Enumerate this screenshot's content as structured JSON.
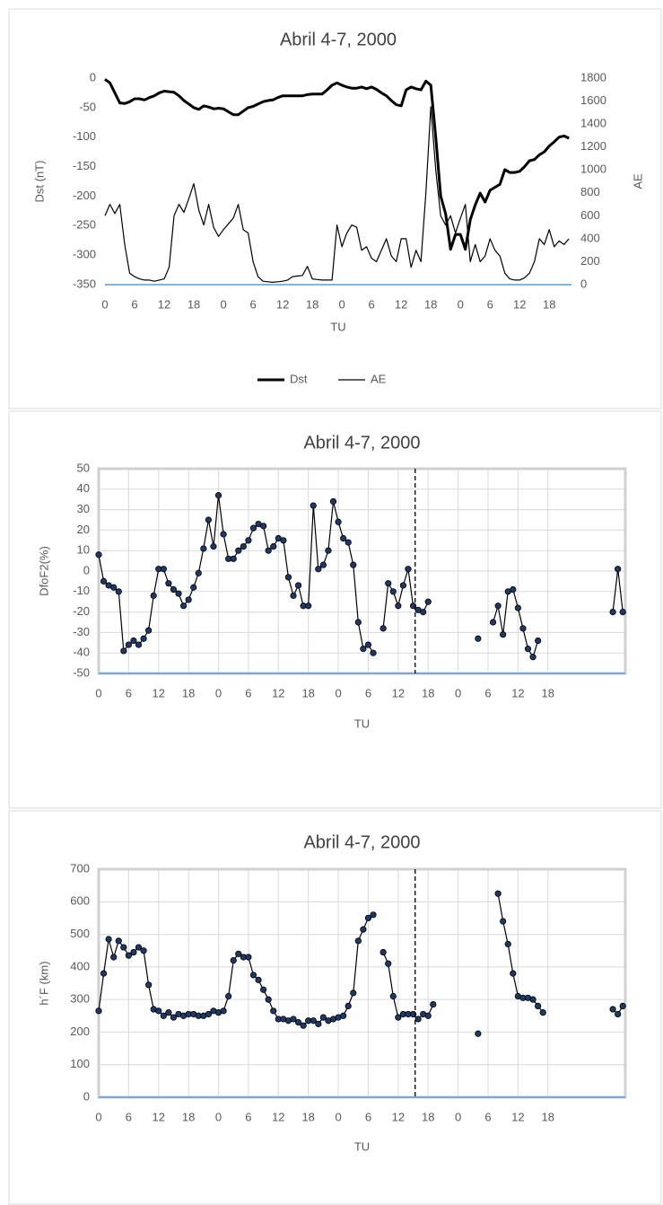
{
  "chart_data": [
    {
      "type": "line",
      "title": "Abril 4-7, 2000",
      "x_label": "TU",
      "y_label": "Dst (nT)",
      "y2_label": "AE",
      "legend": "bottom",
      "grid": false,
      "markers": false,
      "frame": false,
      "x": [
        0,
        1,
        2,
        3,
        4,
        5,
        6,
        7,
        8,
        9,
        10,
        11,
        12,
        13,
        14,
        15,
        16,
        17,
        18,
        19,
        20,
        21,
        22,
        23,
        24,
        25,
        26,
        27,
        28,
        29,
        30,
        31,
        32,
        33,
        34,
        35,
        36,
        37,
        38,
        39,
        40,
        41,
        42,
        43,
        44,
        45,
        46,
        47,
        48,
        49,
        50,
        51,
        52,
        53,
        54,
        55,
        56,
        57,
        58,
        59,
        60,
        61,
        62,
        63,
        64,
        65,
        66,
        67,
        68,
        69,
        70,
        71,
        72,
        73,
        74,
        75,
        76,
        77,
        78,
        79,
        80,
        81,
        82,
        83,
        84,
        85,
        86,
        87,
        88,
        89,
        90,
        91,
        92,
        93,
        94
      ],
      "series": [
        {
          "name": "Dst",
          "color": "#000000",
          "line_width": 3,
          "values": [
            -2,
            -8,
            -25,
            -42,
            -43,
            -40,
            -35,
            -35,
            -37,
            -33,
            -30,
            -25,
            -22,
            -23,
            -24,
            -30,
            -38,
            -44,
            -50,
            -53,
            -47,
            -49,
            -52,
            -51,
            -52,
            -57,
            -62,
            -62,
            -56,
            -50,
            -48,
            -44,
            -40,
            -38,
            -37,
            -33,
            -30,
            -30,
            -30,
            -30,
            -30,
            -28,
            -27,
            -27,
            -27,
            -20,
            -12,
            -8,
            -12,
            -15,
            -17,
            -17,
            -15,
            -18,
            -15,
            -19,
            -25,
            -30,
            -38,
            -45,
            -47,
            -20,
            -15,
            -18,
            -20,
            -5,
            -12,
            -100,
            -200,
            -230,
            -290,
            -265,
            -265,
            -290,
            -240,
            -215,
            -195,
            -210,
            -190,
            -185,
            -180,
            -155,
            -160,
            -160,
            -158,
            -150,
            -140,
            -138,
            -130,
            -125,
            -115,
            -108,
            -100,
            -98,
            -102
          ]
        },
        {
          "name": "AE",
          "color": "#000000",
          "line_width": 1.2,
          "axis": "y2",
          "values": [
            600,
            700,
            620,
            700,
            350,
            100,
            70,
            50,
            40,
            40,
            30,
            40,
            50,
            150,
            600,
            700,
            630,
            750,
            880,
            650,
            520,
            700,
            500,
            420,
            480,
            530,
            580,
            700,
            480,
            450,
            200,
            70,
            30,
            25,
            20,
            25,
            30,
            40,
            70,
            75,
            80,
            160,
            50,
            45,
            40,
            40,
            40,
            520,
            330,
            450,
            520,
            500,
            300,
            330,
            230,
            200,
            300,
            400,
            250,
            200,
            400,
            400,
            150,
            300,
            200,
            800,
            1550,
            1000,
            600,
            520,
            600,
            450,
            580,
            700,
            200,
            350,
            200,
            250,
            400,
            300,
            250,
            100,
            50,
            40,
            40,
            60,
            100,
            200,
            400,
            350,
            480,
            330,
            380,
            350,
            400
          ]
        }
      ],
      "xlim": [
        0,
        94.5
      ],
      "xticks": [
        0,
        6,
        12,
        18,
        {
          "value": 24,
          "label": "0"
        },
        {
          "value": 30,
          "label": "6"
        },
        {
          "value": 36,
          "label": "12"
        },
        {
          "value": 42,
          "label": "18"
        },
        {
          "value": 48,
          "label": "0"
        },
        {
          "value": 54,
          "label": "6"
        },
        {
          "value": 60,
          "label": "12"
        },
        {
          "value": 66,
          "label": "18"
        },
        {
          "value": 72,
          "label": "0"
        },
        {
          "value": 78,
          "label": "6"
        },
        {
          "value": 84,
          "label": "12"
        },
        {
          "value": 90,
          "label": "18"
        }
      ],
      "ylim": [
        -350,
        0
      ],
      "yticks": [
        -350,
        -300,
        -250,
        -200,
        -150,
        -100,
        -50,
        0
      ],
      "y2lim": [
        0,
        1800
      ],
      "y2ticks": [
        0,
        200,
        400,
        600,
        800,
        1000,
        1200,
        1400,
        1600,
        1800
      ]
    },
    {
      "type": "line",
      "title": "Abril 4-7, 2000",
      "x_label": "TU",
      "y_label": "DfoF2(%)",
      "grid": true,
      "markers": true,
      "frame": true,
      "vline": 63.4,
      "x": [
        0,
        1,
        2,
        3,
        4,
        5,
        6,
        7,
        8,
        9,
        10,
        11,
        12,
        13,
        14,
        15,
        16,
        17,
        18,
        19,
        20,
        21,
        22,
        23,
        24,
        25,
        26,
        27,
        28,
        29,
        30,
        31,
        32,
        33,
        34,
        35,
        36,
        37,
        38,
        39,
        40,
        41,
        42,
        43,
        44,
        45,
        46,
        47,
        48,
        49,
        50,
        51,
        52,
        53,
        54,
        55,
        56,
        57,
        58,
        59,
        60,
        61,
        62,
        63,
        64,
        65,
        66,
        67,
        68,
        69,
        70,
        71,
        72,
        73,
        74,
        75,
        76,
        77,
        78,
        79,
        80,
        81,
        82,
        83,
        84,
        85,
        86,
        87,
        88,
        89,
        90,
        91,
        92,
        93,
        94,
        95,
        96,
        97,
        98,
        99,
        100,
        101,
        102,
        103,
        104,
        105
      ],
      "series": [
        {
          "name": "DfoF2",
          "color": "#000000",
          "line_width": 1.2,
          "marker_color": "#1f3864",
          "values": [
            8,
            -5,
            -7,
            -8,
            -10,
            -39,
            -36,
            -34,
            -36,
            -33,
            -29,
            -12,
            1,
            1,
            -6,
            -9,
            -11,
            -17,
            -14,
            -8,
            -1,
            11,
            25,
            12,
            37,
            18,
            6,
            6,
            10,
            12,
            15,
            21,
            23,
            22,
            10,
            12,
            16,
            15,
            -3,
            -12,
            -7,
            -17,
            -17,
            32,
            1,
            3,
            10,
            34,
            24,
            16,
            14,
            3,
            -25,
            -38,
            -36,
            -40,
            null,
            -28,
            -6,
            -10,
            -17,
            -7,
            1,
            -17,
            -19,
            -20,
            -15,
            null,
            null,
            null,
            null,
            null,
            null,
            null,
            null,
            null,
            -33,
            null,
            null,
            -25,
            -17,
            -31,
            -10,
            -9,
            -18,
            -28,
            -38,
            -42,
            -34,
            null,
            null,
            null,
            null,
            null,
            null,
            null,
            null,
            null,
            null,
            null,
            null,
            null,
            null,
            -20,
            1,
            -20
          ]
        }
      ],
      "xlim": [
        0,
        105.5
      ],
      "xticks": [
        0,
        6,
        12,
        18,
        {
          "value": 24,
          "label": "0"
        },
        {
          "value": 30,
          "label": "6"
        },
        {
          "value": 36,
          "label": "12"
        },
        {
          "value": 42,
          "label": "18"
        },
        {
          "value": 48,
          "label": "0"
        },
        {
          "value": 54,
          "label": "6"
        },
        {
          "value": 60,
          "label": "12"
        },
        {
          "value": 66,
          "label": "18"
        },
        {
          "value": 72,
          "label": "0"
        },
        {
          "value": 78,
          "label": "6"
        },
        {
          "value": 84,
          "label": "12"
        },
        {
          "value": 90,
          "label": "18"
        }
      ],
      "ylim": [
        -50,
        50
      ],
      "yticks": [
        -50,
        -40,
        -30,
        -20,
        -10,
        0,
        10,
        20,
        30,
        40,
        50
      ]
    },
    {
      "type": "line",
      "title": "Abril 4-7, 2000",
      "x_label": "TU",
      "y_label": "h´F (km)",
      "grid": true,
      "markers": true,
      "frame": true,
      "vline": 63.4,
      "x": [
        0,
        1,
        2,
        3,
        4,
        5,
        6,
        7,
        8,
        9,
        10,
        11,
        12,
        13,
        14,
        15,
        16,
        17,
        18,
        19,
        20,
        21,
        22,
        23,
        24,
        25,
        26,
        27,
        28,
        29,
        30,
        31,
        32,
        33,
        34,
        35,
        36,
        37,
        38,
        39,
        40,
        41,
        42,
        43,
        44,
        45,
        46,
        47,
        48,
        49,
        50,
        51,
        52,
        53,
        54,
        55,
        56,
        57,
        58,
        59,
        60,
        61,
        62,
        63,
        64,
        65,
        66,
        67,
        68,
        69,
        70,
        71,
        72,
        73,
        74,
        75,
        76,
        77,
        78,
        79,
        80,
        81,
        82,
        83,
        84,
        85,
        86,
        87,
        88,
        89,
        90,
        91,
        92,
        93,
        94,
        95,
        96,
        97,
        98,
        99,
        100,
        101,
        102,
        103,
        104,
        105
      ],
      "series": [
        {
          "name": "h´F",
          "color": "#000000",
          "line_width": 1.2,
          "marker_color": "#1f3864",
          "values": [
            265,
            380,
            485,
            430,
            480,
            460,
            435,
            445,
            460,
            450,
            345,
            270,
            265,
            250,
            260,
            245,
            255,
            250,
            255,
            255,
            250,
            250,
            255,
            265,
            260,
            265,
            310,
            420,
            440,
            430,
            430,
            375,
            360,
            330,
            300,
            265,
            240,
            240,
            235,
            240,
            230,
            220,
            235,
            235,
            225,
            245,
            235,
            240,
            245,
            250,
            280,
            320,
            480,
            515,
            550,
            560,
            null,
            445,
            410,
            310,
            245,
            255,
            255,
            255,
            240,
            255,
            250,
            285,
            null,
            null,
            null,
            null,
            null,
            null,
            null,
            null,
            195,
            null,
            null,
            null,
            625,
            540,
            470,
            380,
            310,
            305,
            305,
            300,
            280,
            260,
            null,
            null,
            null,
            null,
            null,
            null,
            null,
            null,
            null,
            null,
            null,
            null,
            null,
            270,
            255,
            280
          ]
        }
      ],
      "xlim": [
        0,
        105.5
      ],
      "xticks": [
        0,
        6,
        12,
        18,
        {
          "value": 24,
          "label": "0"
        },
        {
          "value": 30,
          "label": "6"
        },
        {
          "value": 36,
          "label": "12"
        },
        {
          "value": 42,
          "label": "18"
        },
        {
          "value": 48,
          "label": "0"
        },
        {
          "value": 54,
          "label": "6"
        },
        {
          "value": 60,
          "label": "12"
        },
        {
          "value": 66,
          "label": "18"
        },
        {
          "value": 72,
          "label": "0"
        },
        {
          "value": 78,
          "label": "6"
        },
        {
          "value": 84,
          "label": "12"
        },
        {
          "value": 90,
          "label": "18"
        }
      ],
      "ylim": [
        0,
        700
      ],
      "yticks": [
        0,
        100,
        200,
        300,
        400,
        500,
        600,
        700
      ]
    }
  ]
}
